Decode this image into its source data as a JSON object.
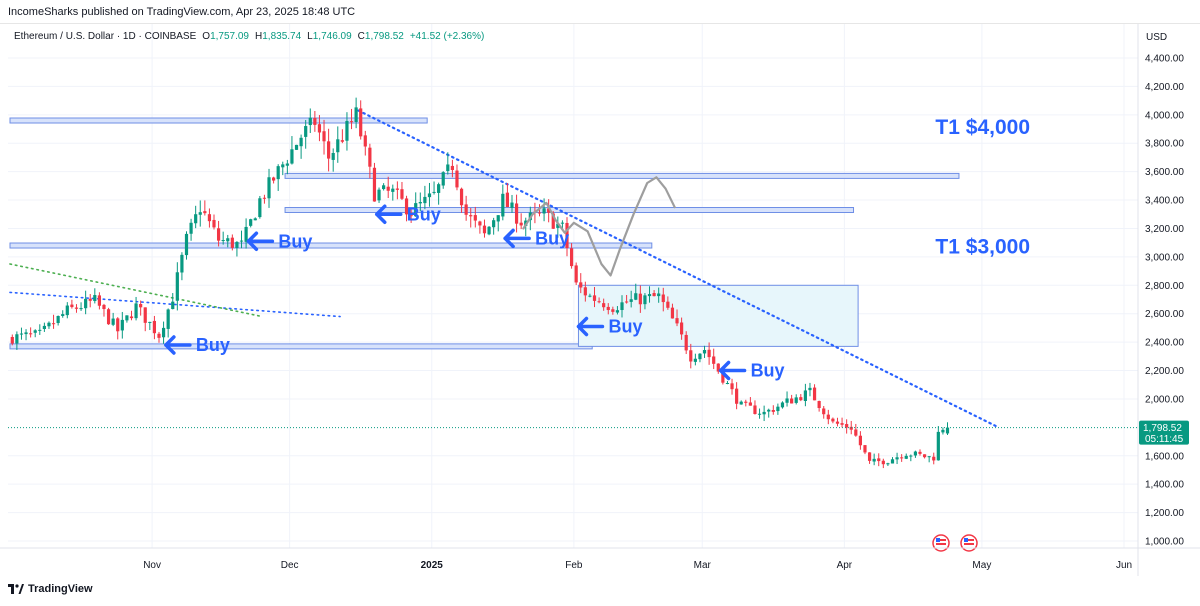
{
  "header": {
    "published_text": "IncomeSharks published on TradingView.com, Apr 23, 2025 18:48 UTC"
  },
  "legend": {
    "symbol": "Ethereum / U.S. Dollar · 1D · COINBASE",
    "open_label": "O",
    "open_value": "1,757.09",
    "high_label": "H",
    "high_value": "1,835.74",
    "low_label": "L",
    "low_value": "1,746.09",
    "close_label": "C",
    "close_value": "1,798.52",
    "change": "+41.52 (+2.36%)"
  },
  "footer": {
    "brand": "TradingView"
  },
  "colors": {
    "up": "#089981",
    "down": "#f23645",
    "annotation": "#2962ff",
    "band": "#6f8fe6",
    "band_fill": "#d3dffb",
    "zone_fill": "#e7f6fb",
    "zone_stroke": "#6f8fe6",
    "trendline": "#2962ff",
    "green_dotted": "#4caf50",
    "sketch": "#9e9e9e",
    "price_tag": "#089981"
  },
  "chart_data": {
    "type": "candlestick",
    "timeframe": "1D",
    "currency_label": "USD",
    "y_range": [
      900,
      4500
    ],
    "y_ticks": [
      {
        "value": 4400,
        "label": "4,400.00"
      },
      {
        "value": 4200,
        "label": "4,200.00"
      },
      {
        "value": 4000,
        "label": "4,000.00"
      },
      {
        "value": 3800,
        "label": "3,800.00"
      },
      {
        "value": 3600,
        "label": "3,600.00"
      },
      {
        "value": 3400,
        "label": "3,400.00"
      },
      {
        "value": 3200,
        "label": "3,200.00"
      },
      {
        "value": 3000,
        "label": "3,000.00"
      },
      {
        "value": 2800,
        "label": "2,800.00"
      },
      {
        "value": 2600,
        "label": "2,600.00"
      },
      {
        "value": 2400,
        "label": "2,400.00"
      },
      {
        "value": 2200,
        "label": "2,200.00"
      },
      {
        "value": 2000,
        "label": "2,000.00"
      },
      {
        "value": 1600,
        "label": "1,600.00"
      },
      {
        "value": 1400,
        "label": "1,400.00"
      },
      {
        "value": 1200,
        "label": "1,200.00"
      },
      {
        "value": 1000,
        "label": "1,000.00"
      }
    ],
    "x_ticks": [
      {
        "date": "2024-11-01",
        "label": "Nov",
        "bold": false
      },
      {
        "date": "2024-12-01",
        "label": "Dec",
        "bold": false
      },
      {
        "date": "2025-01-01",
        "label": "2025",
        "bold": true
      },
      {
        "date": "2025-02-01",
        "label": "Feb",
        "bold": false
      },
      {
        "date": "2025-03-01",
        "label": "Mar",
        "bold": false
      },
      {
        "date": "2025-04-01",
        "label": "Apr",
        "bold": false
      },
      {
        "date": "2025-05-01",
        "label": "May",
        "bold": false
      },
      {
        "date": "2025-06-01",
        "label": "Jun",
        "bold": false
      }
    ],
    "current_price": {
      "value": 1798.52,
      "label": "1,798.52",
      "countdown": "05:11:45"
    },
    "price_anchors": [
      {
        "date": "2024-10-01",
        "price": 2430
      },
      {
        "date": "2024-10-08",
        "price": 2450
      },
      {
        "date": "2024-10-14",
        "price": 2620
      },
      {
        "date": "2024-10-20",
        "price": 2690
      },
      {
        "date": "2024-10-25",
        "price": 2480
      },
      {
        "date": "2024-10-29",
        "price": 2650
      },
      {
        "date": "2024-11-03",
        "price": 2450
      },
      {
        "date": "2024-11-06",
        "price": 2720
      },
      {
        "date": "2024-11-09",
        "price": 3120
      },
      {
        "date": "2024-11-12",
        "price": 3350
      },
      {
        "date": "2024-11-16",
        "price": 3120
      },
      {
        "date": "2024-11-21",
        "price": 3080
      },
      {
        "date": "2024-11-25",
        "price": 3400
      },
      {
        "date": "2024-11-29",
        "price": 3600
      },
      {
        "date": "2024-12-04",
        "price": 3850
      },
      {
        "date": "2024-12-07",
        "price": 3950
      },
      {
        "date": "2024-12-10",
        "price": 3700
      },
      {
        "date": "2024-12-15",
        "price": 3950
      },
      {
        "date": "2024-12-16",
        "price": 4000
      },
      {
        "date": "2024-12-20",
        "price": 3450
      },
      {
        "date": "2024-12-24",
        "price": 3450
      },
      {
        "date": "2024-12-28",
        "price": 3320
      },
      {
        "date": "2025-01-02",
        "price": 3430
      },
      {
        "date": "2025-01-06",
        "price": 3650
      },
      {
        "date": "2025-01-09",
        "price": 3300
      },
      {
        "date": "2025-01-13",
        "price": 3150
      },
      {
        "date": "2025-01-17",
        "price": 3400
      },
      {
        "date": "2025-01-21",
        "price": 3250
      },
      {
        "date": "2025-01-26",
        "price": 3300
      },
      {
        "date": "2025-01-30",
        "price": 3200
      },
      {
        "date": "2025-02-02",
        "price": 2800
      },
      {
        "date": "2025-02-05",
        "price": 2720
      },
      {
        "date": "2025-02-10",
        "price": 2650
      },
      {
        "date": "2025-02-15",
        "price": 2700
      },
      {
        "date": "2025-02-20",
        "price": 2720
      },
      {
        "date": "2025-02-24",
        "price": 2500
      },
      {
        "date": "2025-02-27",
        "price": 2300
      },
      {
        "date": "2025-03-02",
        "price": 2350
      },
      {
        "date": "2025-03-05",
        "price": 2200
      },
      {
        "date": "2025-03-10",
        "price": 1950
      },
      {
        "date": "2025-03-15",
        "price": 1900
      },
      {
        "date": "2025-03-20",
        "price": 1980
      },
      {
        "date": "2025-03-25",
        "price": 2050
      },
      {
        "date": "2025-03-30",
        "price": 1830
      },
      {
        "date": "2025-04-03",
        "price": 1800
      },
      {
        "date": "2025-04-07",
        "price": 1550
      },
      {
        "date": "2025-04-11",
        "price": 1570
      },
      {
        "date": "2025-04-15",
        "price": 1620
      },
      {
        "date": "2025-04-20",
        "price": 1590
      },
      {
        "date": "2025-04-21",
        "price": 1590
      },
      {
        "date": "2025-04-22",
        "price": 1757
      },
      {
        "date": "2025-04-23",
        "price": 1798.52
      }
    ],
    "horizontal_bands": [
      {
        "date_from": "2024-10-01",
        "date_to": "2024-12-31",
        "level": 3960
      },
      {
        "date_from": "2024-11-30",
        "date_to": "2025-04-26",
        "level": 3570
      },
      {
        "date_from": "2024-11-30",
        "date_to": "2025-04-03",
        "level": 3330
      },
      {
        "date_from": "2024-10-01",
        "date_to": "2025-02-18",
        "level": 3080
      },
      {
        "date_from": "2024-10-01",
        "date_to": "2025-02-05",
        "level": 2370
      }
    ],
    "zone": {
      "date_from": "2025-02-02",
      "date_to": "2025-04-04",
      "top": 2800,
      "bottom": 2370
    },
    "trendlines": [
      {
        "style": "dotted",
        "color": "trendline",
        "from": {
          "date": "2024-12-16",
          "price": 4030
        },
        "to": {
          "date": "2025-05-04",
          "price": 1810
        }
      },
      {
        "style": "dotted",
        "color": "trendline",
        "from": {
          "date": "2024-10-01",
          "price": 2750
        },
        "to": {
          "date": "2024-12-12",
          "price": 2580
        }
      },
      {
        "style": "dotted",
        "color": "green_dotted",
        "from": {
          "date": "2024-10-01",
          "price": 2950
        },
        "to": {
          "date": "2024-11-25",
          "price": 2580
        }
      }
    ],
    "annotations": [
      {
        "type": "buy",
        "date": "2024-11-04",
        "price": 2380,
        "label": "Buy"
      },
      {
        "type": "buy",
        "date": "2024-11-22",
        "price": 3110,
        "label": "Buy"
      },
      {
        "type": "buy",
        "date": "2024-12-20",
        "price": 3300,
        "label": "Buy"
      },
      {
        "type": "buy",
        "date": "2025-01-17",
        "price": 3130,
        "label": "Buy"
      },
      {
        "type": "buy",
        "date": "2025-02-02",
        "price": 2510,
        "label": "Buy"
      },
      {
        "type": "buy",
        "date": "2025-03-05",
        "price": 2200,
        "label": "Buy"
      },
      {
        "type": "target",
        "label": "T1 $4,000",
        "price": 3920,
        "date": "2025-04-20"
      },
      {
        "type": "target",
        "label": "T1 $3,000",
        "price": 3080,
        "date": "2025-04-20"
      }
    ]
  }
}
